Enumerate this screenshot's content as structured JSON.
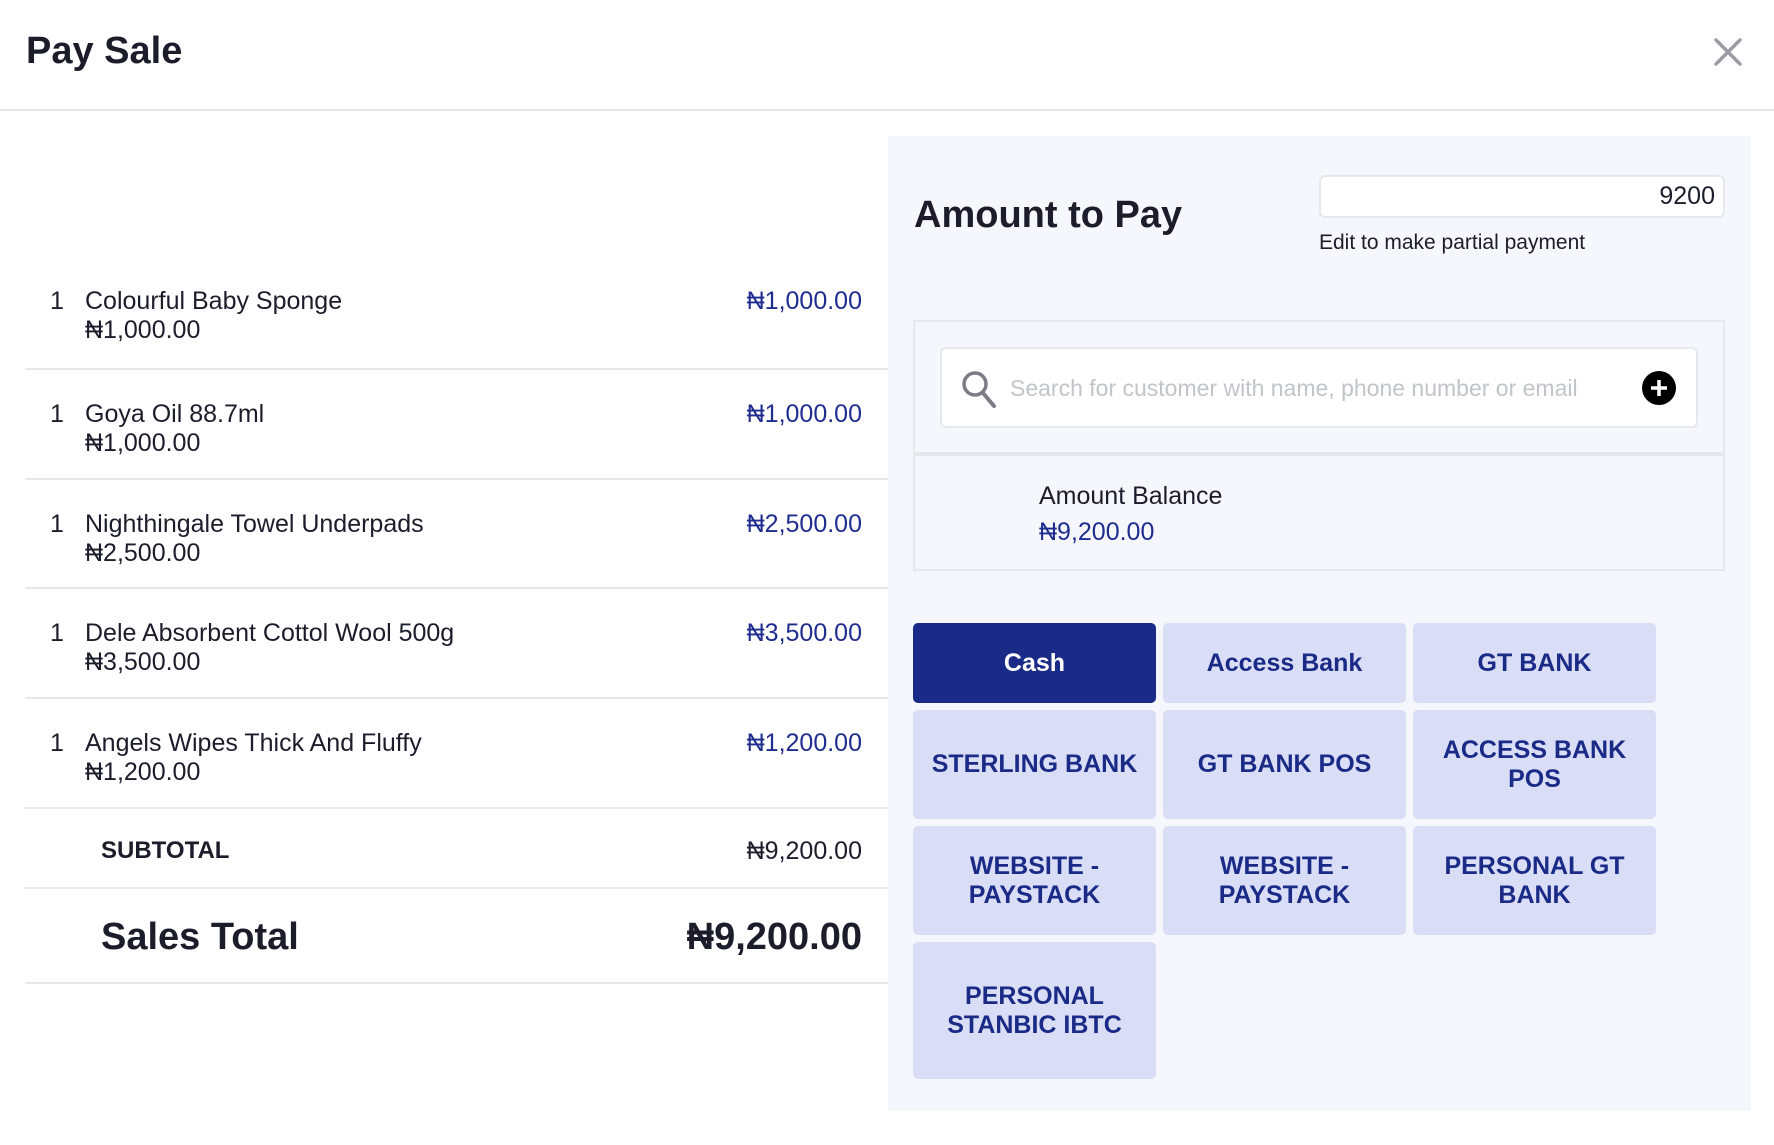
{
  "header": {
    "title": "Pay Sale",
    "close_icon": "close-icon"
  },
  "items": [
    {
      "qty": "1",
      "name": "Colourful Baby Sponge",
      "unit_price": "₦1,000.00",
      "total": "₦1,000.00"
    },
    {
      "qty": "1",
      "name": "Goya Oil 88.7ml",
      "unit_price": "₦1,000.00",
      "total": "₦1,000.00"
    },
    {
      "qty": "1",
      "name": "Nighthingale Towel Underpads",
      "unit_price": "₦2,500.00",
      "total": "₦2,500.00"
    },
    {
      "qty": "1",
      "name": "Dele Absorbent Cottol Wool 500g",
      "unit_price": "₦3,500.00",
      "total": "₦3,500.00"
    },
    {
      "qty": "1",
      "name": "Angels Wipes Thick And Fluffy",
      "unit_price": "₦1,200.00",
      "total": "₦1,200.00"
    }
  ],
  "subtotal": {
    "label": "SUBTOTAL",
    "value": "₦9,200.00"
  },
  "sales_total": {
    "label": "Sales Total",
    "value": "₦9,200.00"
  },
  "payment": {
    "title": "Amount to Pay",
    "amount_value": "9200",
    "hint": "Edit to make partial payment",
    "search_placeholder": "Search for customer with name, phone number or email",
    "balance_label": "Amount Balance",
    "balance_value": "₦9,200.00",
    "methods": [
      "Cash",
      "Access Bank",
      "GT BANK",
      "STERLING BANK",
      "GT BANK POS",
      "ACCESS BANK POS",
      "WEBSITE - PAYSTACK",
      "WEBSITE - PAYSTACK",
      "PERSONAL GT BANK",
      "PERSONAL STANBIC IBTC"
    ],
    "selected_method": "Cash"
  },
  "colors": {
    "accent": "#1a2a87",
    "method_bg": "#d9ddf5",
    "panel_bg": "#f5f7fc",
    "price": "#1f2d8f"
  }
}
